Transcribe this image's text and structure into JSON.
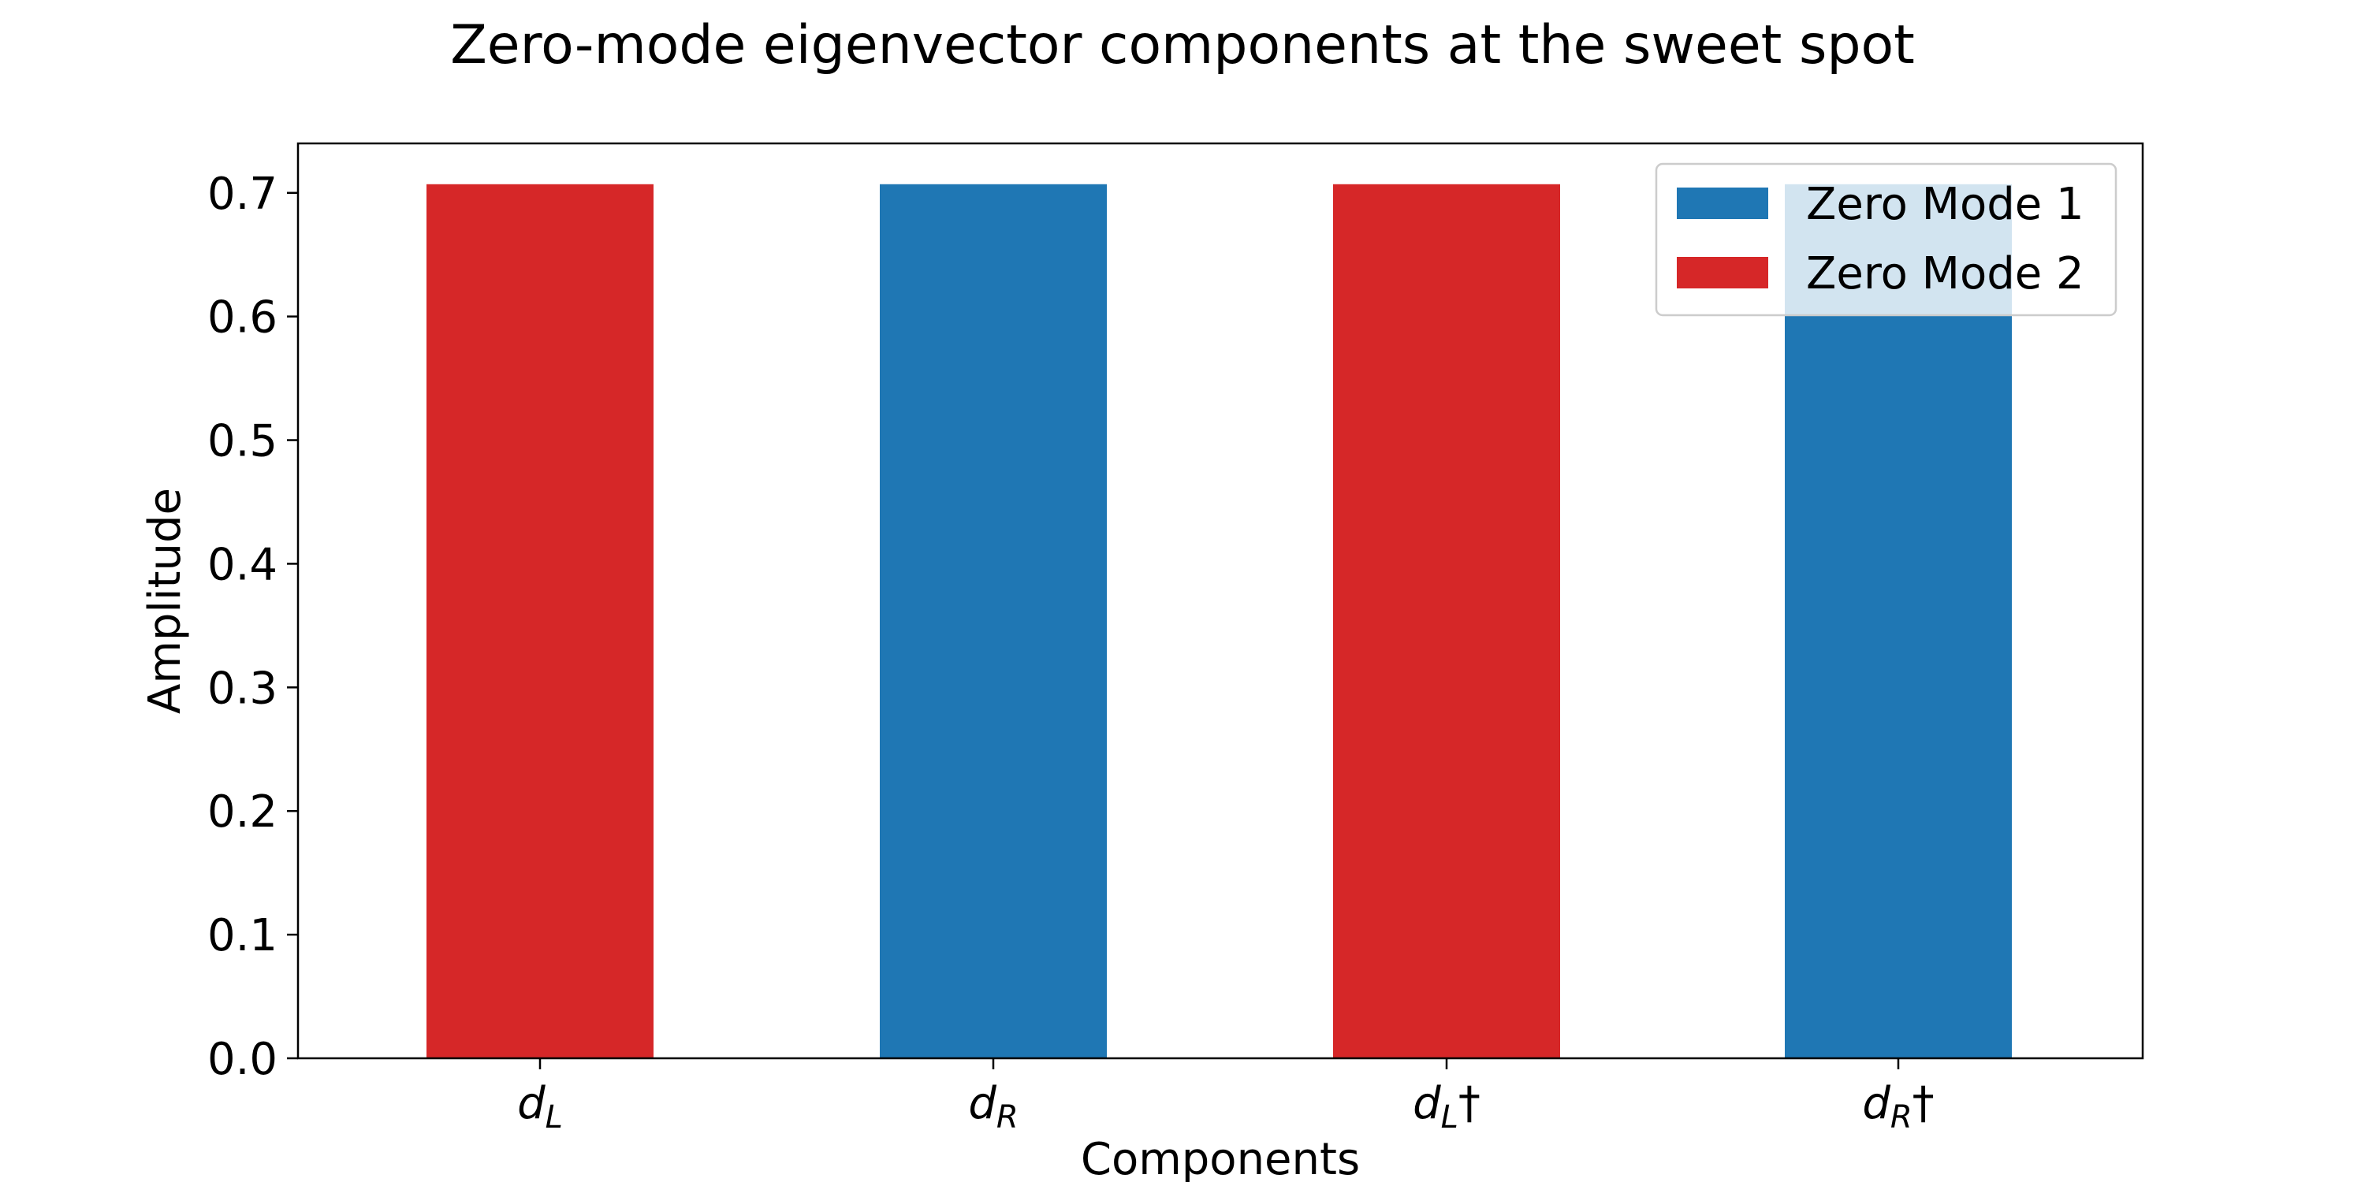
{
  "chart_data": {
    "type": "bar",
    "title": "Zero-mode eigenvector components at the sweet spot",
    "xlabel": "Components",
    "ylabel": "Amplitude",
    "ylim": [
      0,
      0.74
    ],
    "yticks": [
      0.0,
      0.1,
      0.2,
      0.3,
      0.4,
      0.5,
      0.6,
      0.7
    ],
    "ytick_labels": [
      "0.0",
      "0.1",
      "0.2",
      "0.3",
      "0.4",
      "0.5",
      "0.6",
      "0.7"
    ],
    "categories": [
      {
        "base": "d",
        "sub": "L",
        "dagger": false
      },
      {
        "base": "d",
        "sub": "R",
        "dagger": false
      },
      {
        "base": "d",
        "sub": "L",
        "dagger": true
      },
      {
        "base": "d",
        "sub": "R",
        "dagger": true
      }
    ],
    "series": [
      {
        "name": "Zero Mode 1",
        "color": "#1f77b4",
        "values": [
          0.0,
          0.707,
          0.0,
          0.707
        ]
      },
      {
        "name": "Zero Mode 2",
        "color": "#d62728",
        "values": [
          0.707,
          0.0,
          0.707,
          0.0
        ]
      }
    ],
    "grid": false,
    "legend_position": "upper right"
  }
}
